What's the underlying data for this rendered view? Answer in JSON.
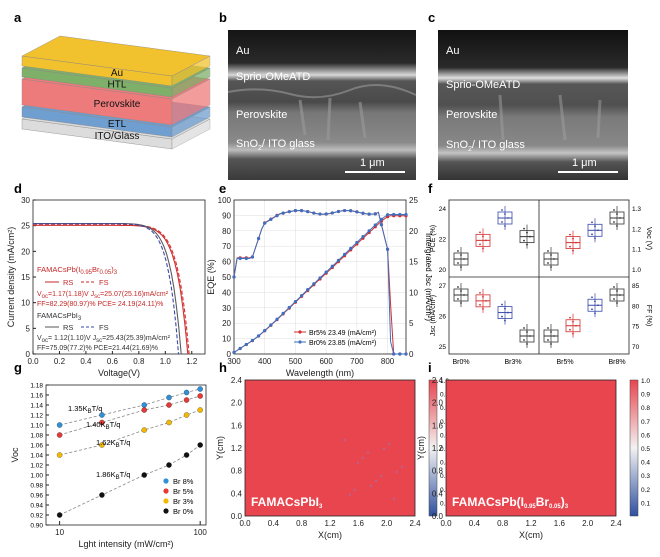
{
  "panel_labels": [
    "a",
    "b",
    "c",
    "d",
    "e",
    "f",
    "g",
    "h",
    "i"
  ],
  "panel_a": {
    "layers": [
      {
        "name": "Au",
        "color": "#f2c12e"
      },
      {
        "name": "HTL",
        "color": "#7fb06a"
      },
      {
        "name": "Perovskite",
        "color": "#ee7b7b"
      },
      {
        "name": "ETL",
        "color": "#6f9fd0"
      },
      {
        "name": "ITO/Glass",
        "color": "#dcdcdc"
      }
    ]
  },
  "panel_b": {
    "labels": {
      "au": "Au",
      "htl": "Sprio-OMeATD",
      "pvk": "Perovskite",
      "sub": "SnO",
      "sub_sub": "2",
      "sub_rest": "/ ITO glass"
    },
    "scalebar": "1 μm"
  },
  "panel_c": {
    "labels": {
      "au": "Au",
      "htl": "Sprio-OMeATD",
      "pvk": "Perovskite",
      "sub": "SnO",
      "sub_sub": "2",
      "sub_rest": "/ ITO glass"
    },
    "scalebar": "1 μm"
  },
  "chart_data": [
    {
      "id": "d",
      "type": "line",
      "xlabel": "Voltage(V)",
      "ylabel": "Current density (mA/cm²)",
      "xlim": [
        0,
        1.3
      ],
      "ylim": [
        0,
        30
      ],
      "xticks": [
        "0.0",
        "0.2",
        "0.4",
        "0.6",
        "0.8",
        "1.0",
        "1.2"
      ],
      "yticks": [
        "0",
        "5",
        "10",
        "15",
        "20",
        "25",
        "30"
      ],
      "legend": {
        "br": {
          "title": "FAMACsPb(I",
          "t_sub1": "0.95",
          "t_mid": "Br",
          "t_sub2": "0.05",
          "t_end": ")",
          "t_sub3": "3",
          "rs": "RS",
          "fs": "FS",
          "line1": "V",
          "line1_sub": "oc",
          "line1_rest": "=1.17(1.18)V J",
          "line1_sub2": "sc",
          "line1_end": "=25.07(25.16)mA/cm²",
          "line2": "FF=82.29(80.97)% PCE= 24.19(24.11)%"
        },
        "pbi": {
          "title": "FAMACsPbI",
          "t_sub": "3",
          "rs": "RS",
          "fs": "FS",
          "line1": "V",
          "line1_sub": "oc",
          "line1_rest": "= 1.12(1.10)V J",
          "line1_sub2": "sc",
          "line1_end": "=25.43(25.39)mA/cm²",
          "line2": "FF=75.09(77.2)% PCE=21.44(21.69)%"
        }
      },
      "series": [
        {
          "name": "Br RS",
          "color": "#d32f2f",
          "dash": false,
          "jsc": 25.07,
          "voc": 1.17
        },
        {
          "name": "Br FS",
          "color": "#d32f2f",
          "dash": true,
          "jsc": 25.16,
          "voc": 1.18
        },
        {
          "name": "PbI3 RS",
          "color": "#5c5c5c",
          "dash": false,
          "jsc": 25.43,
          "voc": 1.12
        },
        {
          "name": "PbI3 FS",
          "color": "#3949ab",
          "dash": true,
          "jsc": 25.39,
          "voc": 1.1
        }
      ]
    },
    {
      "id": "e",
      "type": "line",
      "xlabel": "Wavelength (nm)",
      "ylabel": "EQE (%)",
      "y2label": "Intergrated Jsc (mA/cm²)",
      "xlim": [
        300,
        860
      ],
      "ylim": [
        0,
        100
      ],
      "y2lim": [
        0,
        25
      ],
      "xticks": [
        "300",
        "400",
        "500",
        "600",
        "700",
        "800"
      ],
      "yticks": [
        "0",
        "10",
        "20",
        "30",
        "40",
        "50",
        "60",
        "70",
        "80",
        "90",
        "100"
      ],
      "y2ticks": [
        "0",
        "5",
        "10",
        "15",
        "20",
        "25"
      ],
      "legend": [
        {
          "name": "Br5%",
          "value": "23.49",
          "unit": "(mA/cm²)"
        },
        {
          "name": "Br0%",
          "value": "23.85",
          "unit": "(mA/cm²)"
        }
      ],
      "series": [
        {
          "name": "Br5%",
          "color": "#d32f2f"
        },
        {
          "name": "Br0%",
          "color": "#3f6fbf"
        }
      ]
    },
    {
      "id": "f",
      "type": "box",
      "categories": [
        "Br0%",
        "Br3%",
        "Br5%",
        "Br8%"
      ],
      "colors": [
        "#333333",
        "#d32f2f",
        "#3949ab",
        "#333333"
      ],
      "top_left": {
        "ylabel": "PCE (%)",
        "yticks": [
          "20",
          "22",
          "24"
        ],
        "medians": [
          21.3,
          21.8,
          22.4,
          21.9
        ]
      },
      "top_right": {
        "ylabel": "Voc (V)",
        "yticks": [
          "1.0",
          "1.1",
          "1.2",
          "1.3"
        ],
        "medians": [
          1.08,
          1.12,
          1.15,
          1.18
        ]
      },
      "bottom_left": {
        "ylabel": "Jsc (mA/cm²)",
        "yticks": [
          "25",
          "26",
          "27"
        ],
        "medians": [
          25.6,
          25.5,
          25.3,
          24.9
        ]
      },
      "bottom_right": {
        "ylabel": "FF (%)",
        "yticks": [
          "70",
          "75",
          "80",
          "85"
        ],
        "medians": [
          76,
          77,
          79,
          80
        ]
      },
      "left_label": "Intergrated Jsc (mA/cm²)"
    },
    {
      "id": "g",
      "type": "scatter",
      "xlabel": "Lght intensity (mW/cm²)",
      "ylabel": "Voc",
      "xscale": "log",
      "xlim": [
        8,
        110
      ],
      "ylim": [
        0.9,
        1.18
      ],
      "xticks": [
        "10",
        "100"
      ],
      "yticks": [
        "0.90",
        "0.92",
        "0.94",
        "0.96",
        "0.98",
        "1.00",
        "1.02",
        "1.04",
        "1.06",
        "1.08",
        "1.10",
        "1.12",
        "1.14",
        "1.16",
        "1.18"
      ],
      "annotations": [
        "1.35K",
        "1.40K",
        "1.62K",
        "1.86K"
      ],
      "ann_sub": "B",
      "ann_rest": "T/q",
      "legend": [
        "Br 8%",
        "Br 5%",
        "Br 3%",
        "Br 0%"
      ],
      "series": [
        {
          "name": "Br 8%",
          "color": "#2f8fd8",
          "x": [
            10,
            20,
            40,
            60,
            80,
            100
          ],
          "y": [
            1.1,
            1.12,
            1.14,
            1.155,
            1.165,
            1.172
          ]
        },
        {
          "name": "Br 5%",
          "color": "#e53935",
          "x": [
            10,
            20,
            40,
            60,
            80,
            100
          ],
          "y": [
            1.08,
            1.105,
            1.13,
            1.14,
            1.15,
            1.158
          ]
        },
        {
          "name": "Br 3%",
          "color": "#f5b800",
          "x": [
            10,
            20,
            40,
            60,
            80,
            100
          ],
          "y": [
            1.04,
            1.06,
            1.09,
            1.105,
            1.12,
            1.13
          ]
        },
        {
          "name": "Br 0%",
          "color": "#111111",
          "x": [
            10,
            20,
            40,
            60,
            80,
            100
          ],
          "y": [
            0.92,
            0.96,
            1.0,
            1.02,
            1.04,
            1.06
          ]
        }
      ]
    },
    {
      "id": "h",
      "type": "heatmap",
      "xlabel": "X(cm)",
      "ylabel": "Y(cm)",
      "xlim": [
        0,
        2.4
      ],
      "ylim": [
        0,
        2.4
      ],
      "xticks": [
        "0.0",
        "0.4",
        "0.8",
        "1.2",
        "1.6",
        "2.0",
        "2.4"
      ],
      "yticks": [
        "0.0",
        "0.4",
        "0.8",
        "1.2",
        "1.6",
        "2.0",
        "2.4"
      ],
      "cbar": [
        "0.1",
        "0.2",
        "0.3",
        "0.4",
        "0.5",
        "0.6",
        "0.7",
        "0.8",
        "0.9",
        "1.0"
      ],
      "label": "FAMACsPbI",
      "label_sub": "3",
      "fill": "#e8454f"
    },
    {
      "id": "i",
      "type": "heatmap",
      "xlabel": "X(cm)",
      "ylabel": "Y(cm)",
      "xlim": [
        0,
        2.4
      ],
      "ylim": [
        0,
        2.4
      ],
      "xticks": [
        "0.0",
        "0.4",
        "0.8",
        "1.2",
        "1.6",
        "2.0",
        "2.4"
      ],
      "yticks": [
        "0.0",
        "0.4",
        "0.8",
        "1.2",
        "1.6",
        "2.0",
        "2.4"
      ],
      "cbar": [
        "0.1",
        "0.2",
        "0.3",
        "0.4",
        "0.5",
        "0.6",
        "0.7",
        "0.8",
        "0.9",
        "1.0"
      ],
      "label": "FAMACsPb(I",
      "label_sub1": "0.95",
      "label_mid": "Br",
      "label_sub2": "0.05",
      "label_end": ")",
      "label_sub3": "3",
      "fill": "#e8454f"
    }
  ]
}
